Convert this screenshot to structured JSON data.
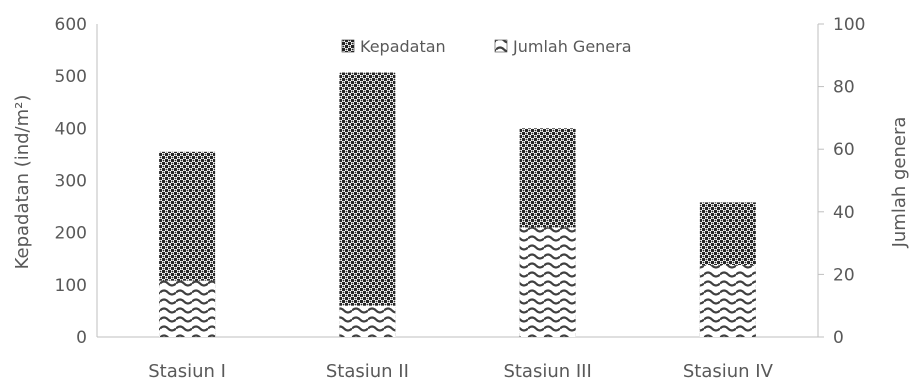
{
  "chart_data": {
    "type": "bar",
    "categories": [
      "Stasiun I",
      "Stasiun II",
      "Stasiun III",
      "Stasiun IV"
    ],
    "series": [
      {
        "name": "Kepadatan",
        "axis": "left",
        "values": [
          355,
          507,
          400,
          258
        ],
        "pattern": "diamond-checker",
        "color": "#262626"
      },
      {
        "name": "Jumlah Genera",
        "axis": "right",
        "values": [
          18,
          10,
          35,
          23
        ],
        "pattern": "wave",
        "color": "#404040"
      }
    ],
    "ylabel": "Kepadatan (ind/m²)",
    "y2label": "Jumlah genera",
    "ylim": [
      0,
      600
    ],
    "y2lim": [
      0,
      100
    ],
    "yticks": [
      "0",
      "100",
      "200",
      "300",
      "400",
      "500",
      "600"
    ],
    "y2ticks": [
      "0",
      "20",
      "40",
      "60",
      "80",
      "100"
    ],
    "legend": [
      "Kepadatan",
      "Jumlah Genera"
    ],
    "legend_position": "top-center",
    "grid": false
  }
}
